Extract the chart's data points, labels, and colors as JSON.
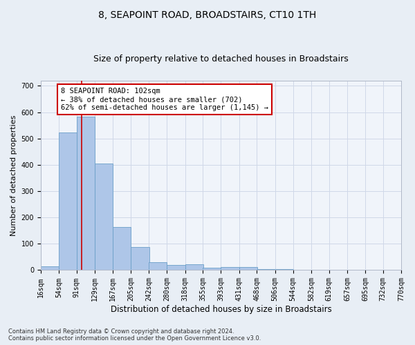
{
  "title": "8, SEAPOINT ROAD, BROADSTAIRS, CT10 1TH",
  "subtitle": "Size of property relative to detached houses in Broadstairs",
  "xlabel": "Distribution of detached houses by size in Broadstairs",
  "ylabel": "Number of detached properties",
  "bar_left_edges": [
    16,
    54,
    91,
    129,
    167,
    205,
    242,
    280,
    318,
    355,
    393,
    431,
    468,
    506,
    544,
    582,
    619,
    657,
    695,
    732
  ],
  "bar_heights": [
    14,
    523,
    583,
    404,
    163,
    87,
    31,
    20,
    22,
    8,
    11,
    11,
    4,
    4,
    0,
    0,
    0,
    0,
    0,
    0
  ],
  "bin_width": 38,
  "bar_color": "#aec6e8",
  "bar_edge_color": "#6a9fc8",
  "vline_x": 102,
  "vline_color": "#cc0000",
  "annotation_text": "8 SEAPOINT ROAD: 102sqm\n← 38% of detached houses are smaller (702)\n62% of semi-detached houses are larger (1,145) →",
  "annotation_box_color": "#ffffff",
  "annotation_box_edge_color": "#cc0000",
  "ylim": [
    0,
    720
  ],
  "yticks": [
    0,
    100,
    200,
    300,
    400,
    500,
    600,
    700
  ],
  "x_tick_labels": [
    "16sqm",
    "54sqm",
    "91sqm",
    "129sqm",
    "167sqm",
    "205sqm",
    "242sqm",
    "280sqm",
    "318sqm",
    "355sqm",
    "393sqm",
    "431sqm",
    "468sqm",
    "506sqm",
    "544sqm",
    "582sqm",
    "619sqm",
    "657sqm",
    "695sqm",
    "732sqm",
    "770sqm"
  ],
  "footnote1": "Contains HM Land Registry data © Crown copyright and database right 2024.",
  "footnote2": "Contains public sector information licensed under the Open Government Licence v3.0.",
  "grid_color": "#d0d8e8",
  "bg_color": "#e8eef5",
  "plot_bg_color": "#f0f4fa",
  "title_fontsize": 10,
  "subtitle_fontsize": 9,
  "tick_fontsize": 7,
  "ylabel_fontsize": 8,
  "xlabel_fontsize": 8.5
}
